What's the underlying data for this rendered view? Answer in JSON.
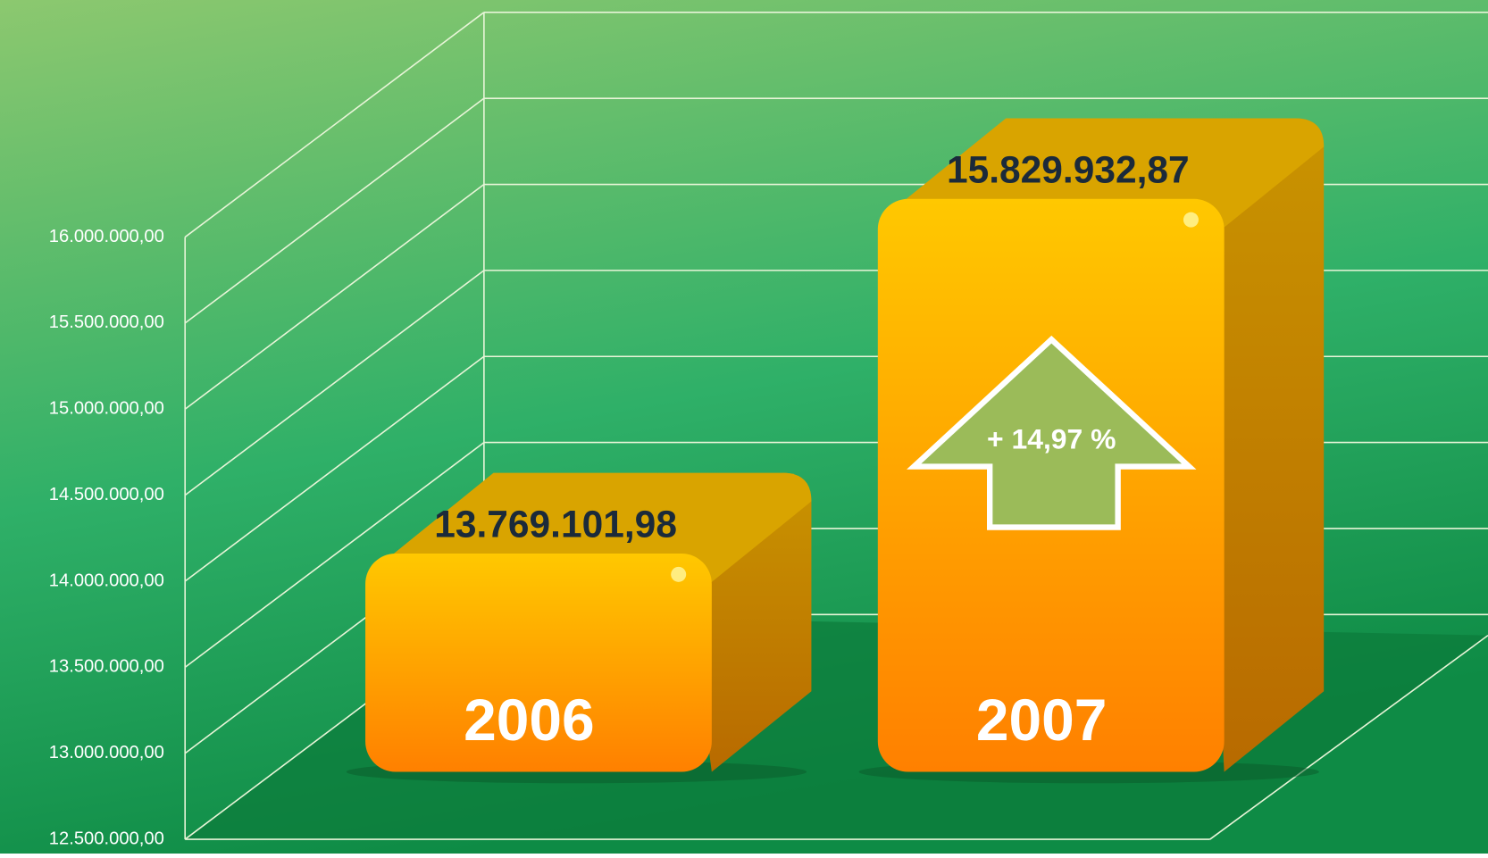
{
  "chart_data": {
    "type": "bar3d",
    "categories": [
      "2006",
      "2007"
    ],
    "values": [
      13769101.98,
      15829932.87
    ],
    "value_labels": [
      "13.769.101,98",
      "15.829.932,87"
    ],
    "annotation": "+ 14,97 %",
    "color": "#ffb000",
    "ylim": [
      12500000,
      16000000
    ],
    "yticks": [
      {
        "value": 12500000,
        "label": "12.500.000,00"
      },
      {
        "value": 13000000,
        "label": "13.000.000,00"
      },
      {
        "value": 13500000,
        "label": "13.500.000,00"
      },
      {
        "value": 14000000,
        "label": "14.000.000,00"
      },
      {
        "value": 14500000,
        "label": "14.500.000,00"
      },
      {
        "value": 15000000,
        "label": "15.000.000,00"
      },
      {
        "value": 15500000,
        "label": "15.500.000,00"
      },
      {
        "value": 16000000,
        "label": "16.000.000,00"
      }
    ],
    "grid": true
  }
}
